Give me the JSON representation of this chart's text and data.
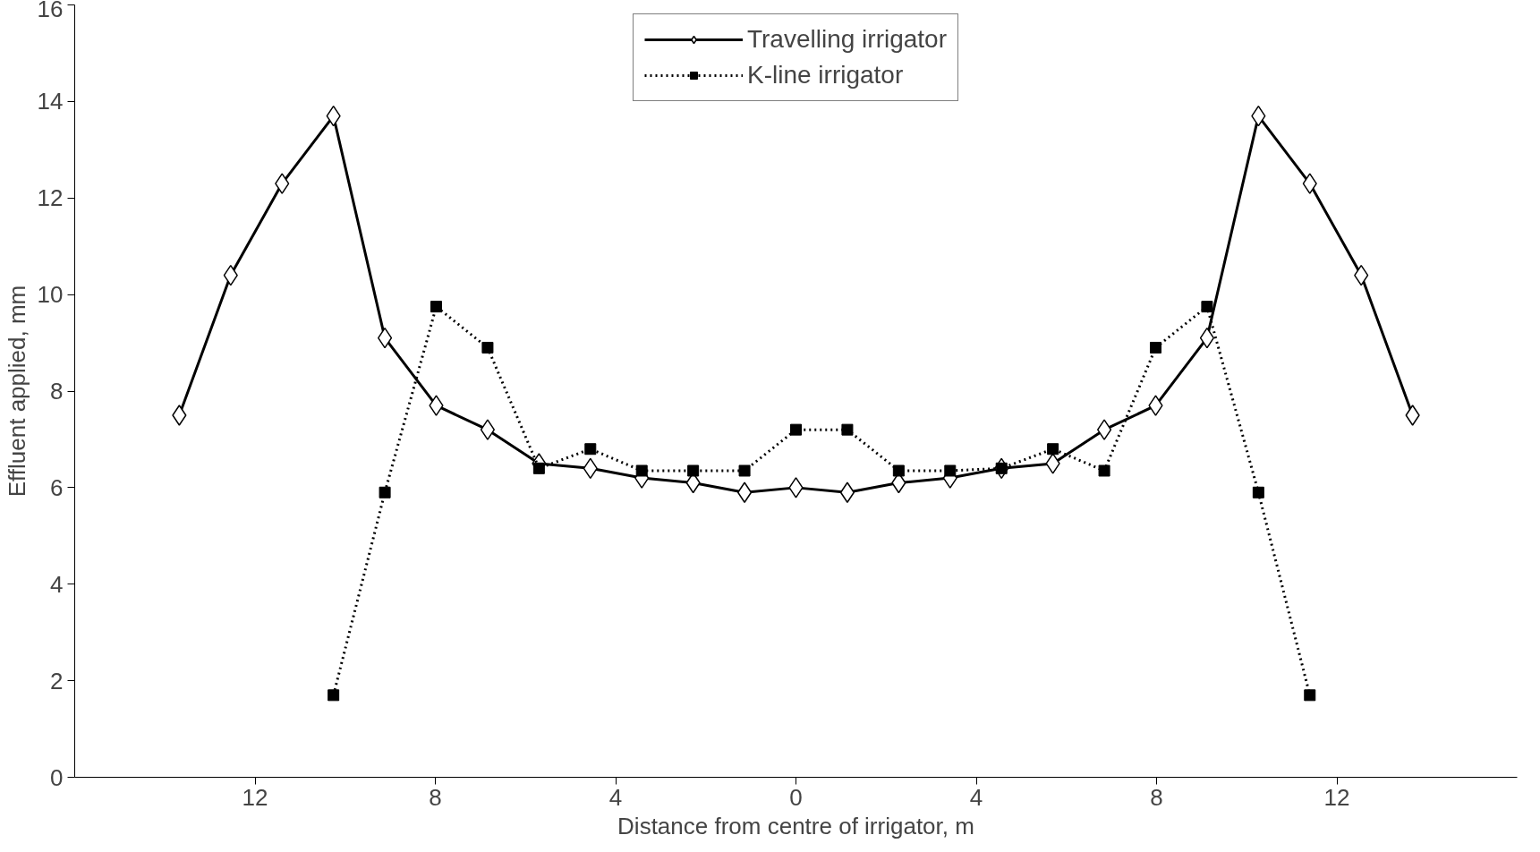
{
  "chart_data": {
    "type": "line",
    "xlabel": "Distance from centre of irrigator, m",
    "ylabel": "Effluent applied, mm",
    "x": [
      -13.68,
      -12.54,
      -11.4,
      -10.26,
      -9.12,
      -7.98,
      -6.84,
      -5.7,
      -4.56,
      -3.42,
      -2.28,
      -1.14,
      0,
      1.14,
      2.28,
      3.42,
      4.56,
      5.7,
      6.84,
      7.98,
      9.12,
      10.26,
      11.4,
      12.54,
      13.68
    ],
    "series": [
      {
        "name": "Travelling irrigator",
        "color": "#000000",
        "marker": "diamond",
        "line_style": "solid",
        "values": [
          7.5,
          10.4,
          12.3,
          13.7,
          9.1,
          7.7,
          7.2,
          6.5,
          6.4,
          6.2,
          6.1,
          5.9,
          6.0,
          5.9,
          6.1,
          6.2,
          6.4,
          6.5,
          7.2,
          7.7,
          9.1,
          13.7,
          12.3,
          10.4,
          7.5
        ]
      },
      {
        "name": "K-line irrigator",
        "color": "#000000",
        "marker": "square",
        "line_style": "dotted",
        "values": [
          null,
          null,
          null,
          1.7,
          5.9,
          9.75,
          8.9,
          6.4,
          6.8,
          6.35,
          6.35,
          6.35,
          7.2,
          7.2,
          6.35,
          6.35,
          6.4,
          6.8,
          6.35,
          8.9,
          9.75,
          5.9,
          1.7,
          null,
          null
        ]
      }
    ],
    "xlim": [
      -16,
      16
    ],
    "xticks": [
      {
        "value": -12,
        "label": "12"
      },
      {
        "value": -8,
        "label": "8"
      },
      {
        "value": -4,
        "label": "4"
      },
      0,
      4,
      8,
      12
    ],
    "ylim": [
      0,
      16
    ],
    "yticks": [
      0,
      2,
      4,
      6,
      8,
      10,
      12,
      14,
      16
    ],
    "grid": false,
    "legend": "top"
  }
}
